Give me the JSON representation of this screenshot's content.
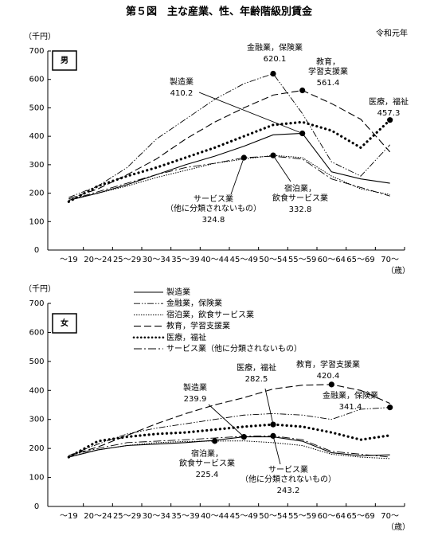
{
  "title": "第５図　主な産業、性、年齢階級別賃金",
  "subtitle": "令和元年",
  "chart_data": [
    {
      "type": "line",
      "panel_label": "男",
      "y_label": "（千円）",
      "x_label": "（歳）",
      "categories": [
        "～19",
        "20～24",
        "25～29",
        "30～34",
        "35～39",
        "40～44",
        "45～49",
        "50～54",
        "55～59",
        "60～64",
        "65～69",
        "70～"
      ],
      "ylim": [
        0,
        700
      ],
      "yticks": [
        0,
        100,
        200,
        300,
        400,
        500,
        600,
        700
      ],
      "legend": false,
      "series": [
        {
          "name": "製造業",
          "color": "#000000",
          "line_style": "solid",
          "values": [
            175,
            200,
            230,
            265,
            300,
            330,
            365,
            405,
            410.2,
            275,
            250,
            235
          ]
        },
        {
          "name": "金融業，保険業",
          "color": "#000000",
          "line_style": "dashdotdot",
          "values": [
            185,
            225,
            290,
            390,
            460,
            530,
            585,
            620.1,
            480,
            310,
            260,
            370
          ]
        },
        {
          "name": "宿泊業，飲食サービス業",
          "color": "#000000",
          "line_style": "dotted",
          "values": [
            175,
            200,
            225,
            255,
            280,
            305,
            320,
            332.8,
            325,
            260,
            215,
            195
          ]
        },
        {
          "name": "教育，学習支援業",
          "color": "#000000",
          "line_style": "dashed",
          "values": [
            180,
            215,
            265,
            320,
            390,
            450,
            500,
            545,
            561.4,
            515,
            460,
            345
          ]
        },
        {
          "name": "医療，福祉",
          "color": "#000000",
          "line_style": "thickdotted",
          "values": [
            170,
            225,
            260,
            290,
            325,
            360,
            400,
            440,
            450,
            420,
            360,
            457.3
          ]
        },
        {
          "name": "サービス業（他に分類されないもの）",
          "color": "#000000",
          "line_style": "dashdot",
          "values": [
            175,
            205,
            235,
            265,
            290,
            305,
            324.8,
            330,
            320,
            250,
            220,
            190
          ]
        }
      ],
      "annotations": [
        {
          "text": [
            "金融業，保険業"
          ],
          "value": 620.1
        },
        {
          "text": [
            "教育，",
            "学習支援業"
          ],
          "value": 561.4
        },
        {
          "text": [
            "医療，福祉"
          ],
          "value": 457.3
        },
        {
          "text": [
            "製造業"
          ],
          "value": 410.2
        },
        {
          "text": [
            "宿泊業，",
            "飲食サービス業"
          ],
          "value": 332.8
        },
        {
          "text": [
            "サービス業",
            "（他に分類されないもの）"
          ],
          "value": 324.8
        }
      ]
    },
    {
      "type": "line",
      "panel_label": "女",
      "y_label": "（千円）",
      "x_label": "（歳）",
      "categories": [
        "～19",
        "20～24",
        "25～29",
        "30～34",
        "35～39",
        "40～44",
        "45～49",
        "50～54",
        "55～59",
        "60～64",
        "65～69",
        "70～"
      ],
      "ylim": [
        0,
        700
      ],
      "yticks": [
        0,
        100,
        200,
        300,
        400,
        500,
        600,
        700
      ],
      "legend": true,
      "series": [
        {
          "name": "製造業",
          "color": "#000000",
          "line_style": "solid",
          "values": [
            170,
            195,
            210,
            215,
            220,
            228,
            239.9,
            240,
            225,
            185,
            175,
            178
          ]
        },
        {
          "name": "金融業，保険業",
          "color": "#000000",
          "line_style": "dashdotdot",
          "values": [
            175,
            215,
            250,
            270,
            285,
            300,
            315,
            320,
            315,
            300,
            335,
            341.4
          ]
        },
        {
          "name": "宿泊業，飲食サービス業",
          "color": "#000000",
          "line_style": "dotted",
          "values": [
            170,
            195,
            210,
            220,
            224,
            225.4,
            226,
            220,
            210,
            180,
            170,
            165
          ]
        },
        {
          "name": "教育，学習支援業",
          "color": "#000000",
          "line_style": "dashed",
          "values": [
            175,
            205,
            245,
            285,
            320,
            350,
            375,
            405,
            418,
            420.4,
            400,
            355
          ]
        },
        {
          "name": "医療，福祉",
          "color": "#000000",
          "line_style": "thickdotted",
          "values": [
            170,
            225,
            240,
            250,
            255,
            265,
            275,
            282.5,
            275,
            255,
            230,
            245
          ]
        },
        {
          "name": "サービス業（他に分類されないもの）",
          "color": "#000000",
          "line_style": "dashdot",
          "values": [
            175,
            200,
            220,
            225,
            230,
            236,
            242,
            243.2,
            230,
            190,
            180,
            170
          ]
        }
      ],
      "annotations": [
        {
          "text": [
            "製造業"
          ],
          "value": 239.9
        },
        {
          "text": [
            "医療，福祉"
          ],
          "value": 282.5
        },
        {
          "text": [
            "教育，学習支援業"
          ],
          "value": 420.4
        },
        {
          "text": [
            "金融業，保険業"
          ],
          "value": 341.4
        },
        {
          "text": [
            "宿泊業，",
            "飲食サービス業"
          ],
          "value": 225.4
        },
        {
          "text": [
            "サービス業",
            "（他に分類されないもの）"
          ],
          "value": 243.2
        }
      ]
    }
  ]
}
